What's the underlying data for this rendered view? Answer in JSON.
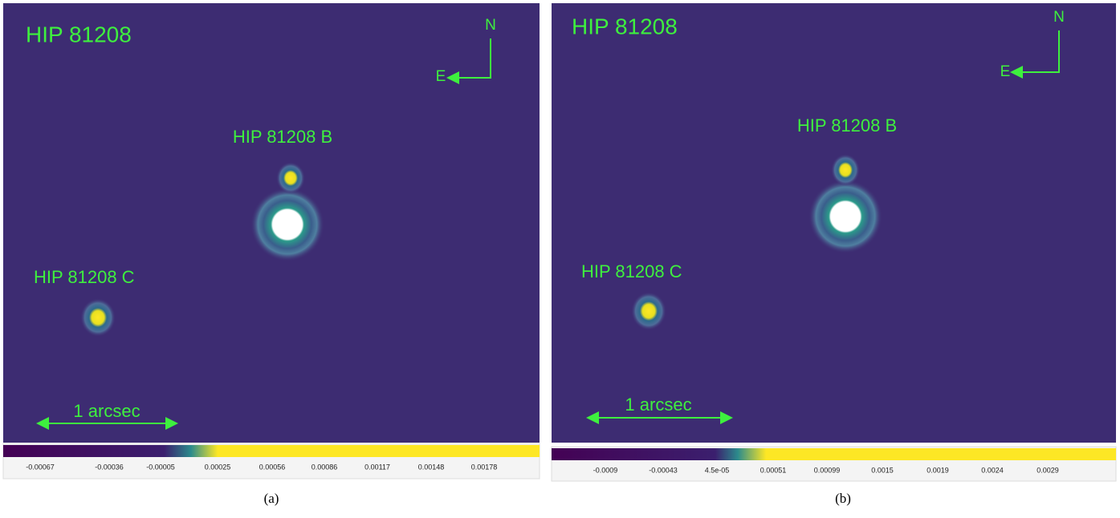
{
  "panels": [
    {
      "title": "HIP 81208",
      "companion_b": "HIP 81208 B",
      "companion_c": "HIP 81208 C",
      "north": "N",
      "east": "E",
      "scale": "1 arcsec",
      "colorbar_ticks": [
        "-0.00067",
        "-0.00036",
        "-0.00005",
        "0.00025",
        "0.00056",
        "0.00086",
        "0.00117",
        "0.00148",
        "0.00178"
      ],
      "caption": "(a)"
    },
    {
      "title": "HIP 81208",
      "companion_b": "HIP 81208 B",
      "companion_c": "HIP 81208 C",
      "north": "N",
      "east": "E",
      "scale": "1 arcsec",
      "colorbar_ticks": [
        "-0.0009",
        "-0.00043",
        "4.5e-05",
        "0.00051",
        "0.00099",
        "0.0015",
        "0.0019",
        "0.0024",
        "0.0029"
      ],
      "caption": "(b)"
    }
  ]
}
